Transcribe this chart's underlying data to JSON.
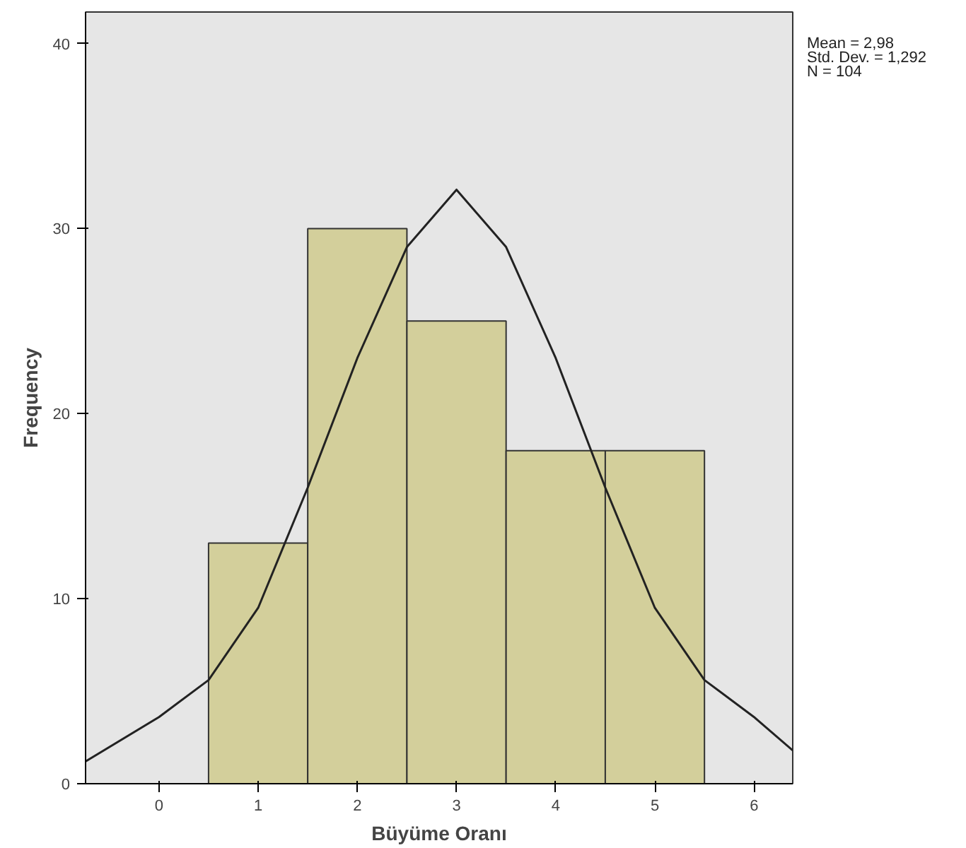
{
  "chart_data": {
    "type": "histogram",
    "xlabel": "Büyüme Oranı",
    "ylabel": "Frequency",
    "bins": [
      0.5,
      1.5,
      2.5,
      3.5,
      4.5,
      5.5
    ],
    "values": [
      13,
      30,
      25,
      18,
      18
    ],
    "color": "#d3cf9b",
    "series": [
      {
        "type": "line",
        "color": "#222222",
        "x": [
          -0.74,
          0,
          0.5,
          1,
          1.5,
          2,
          2.5,
          3,
          3.5,
          4,
          4.5,
          5,
          5.5,
          6,
          6.39
        ],
        "values": [
          1.2,
          3.6,
          5.6,
          9.5,
          16,
          23,
          29,
          32.1,
          29,
          23,
          16,
          9.5,
          5.6,
          3.6,
          1.8
        ]
      }
    ],
    "xlim": [
      -0.74,
      6.39
    ],
    "ylim": [
      0,
      41.7
    ],
    "xticks": [
      0,
      1,
      2,
      3,
      4,
      5,
      6
    ],
    "yticks": [
      0,
      10,
      20,
      30,
      40
    ],
    "grid": false,
    "annotations": [
      "Mean = 2,98",
      "Std. Dev. = 1,292",
      "N = 104"
    ]
  }
}
